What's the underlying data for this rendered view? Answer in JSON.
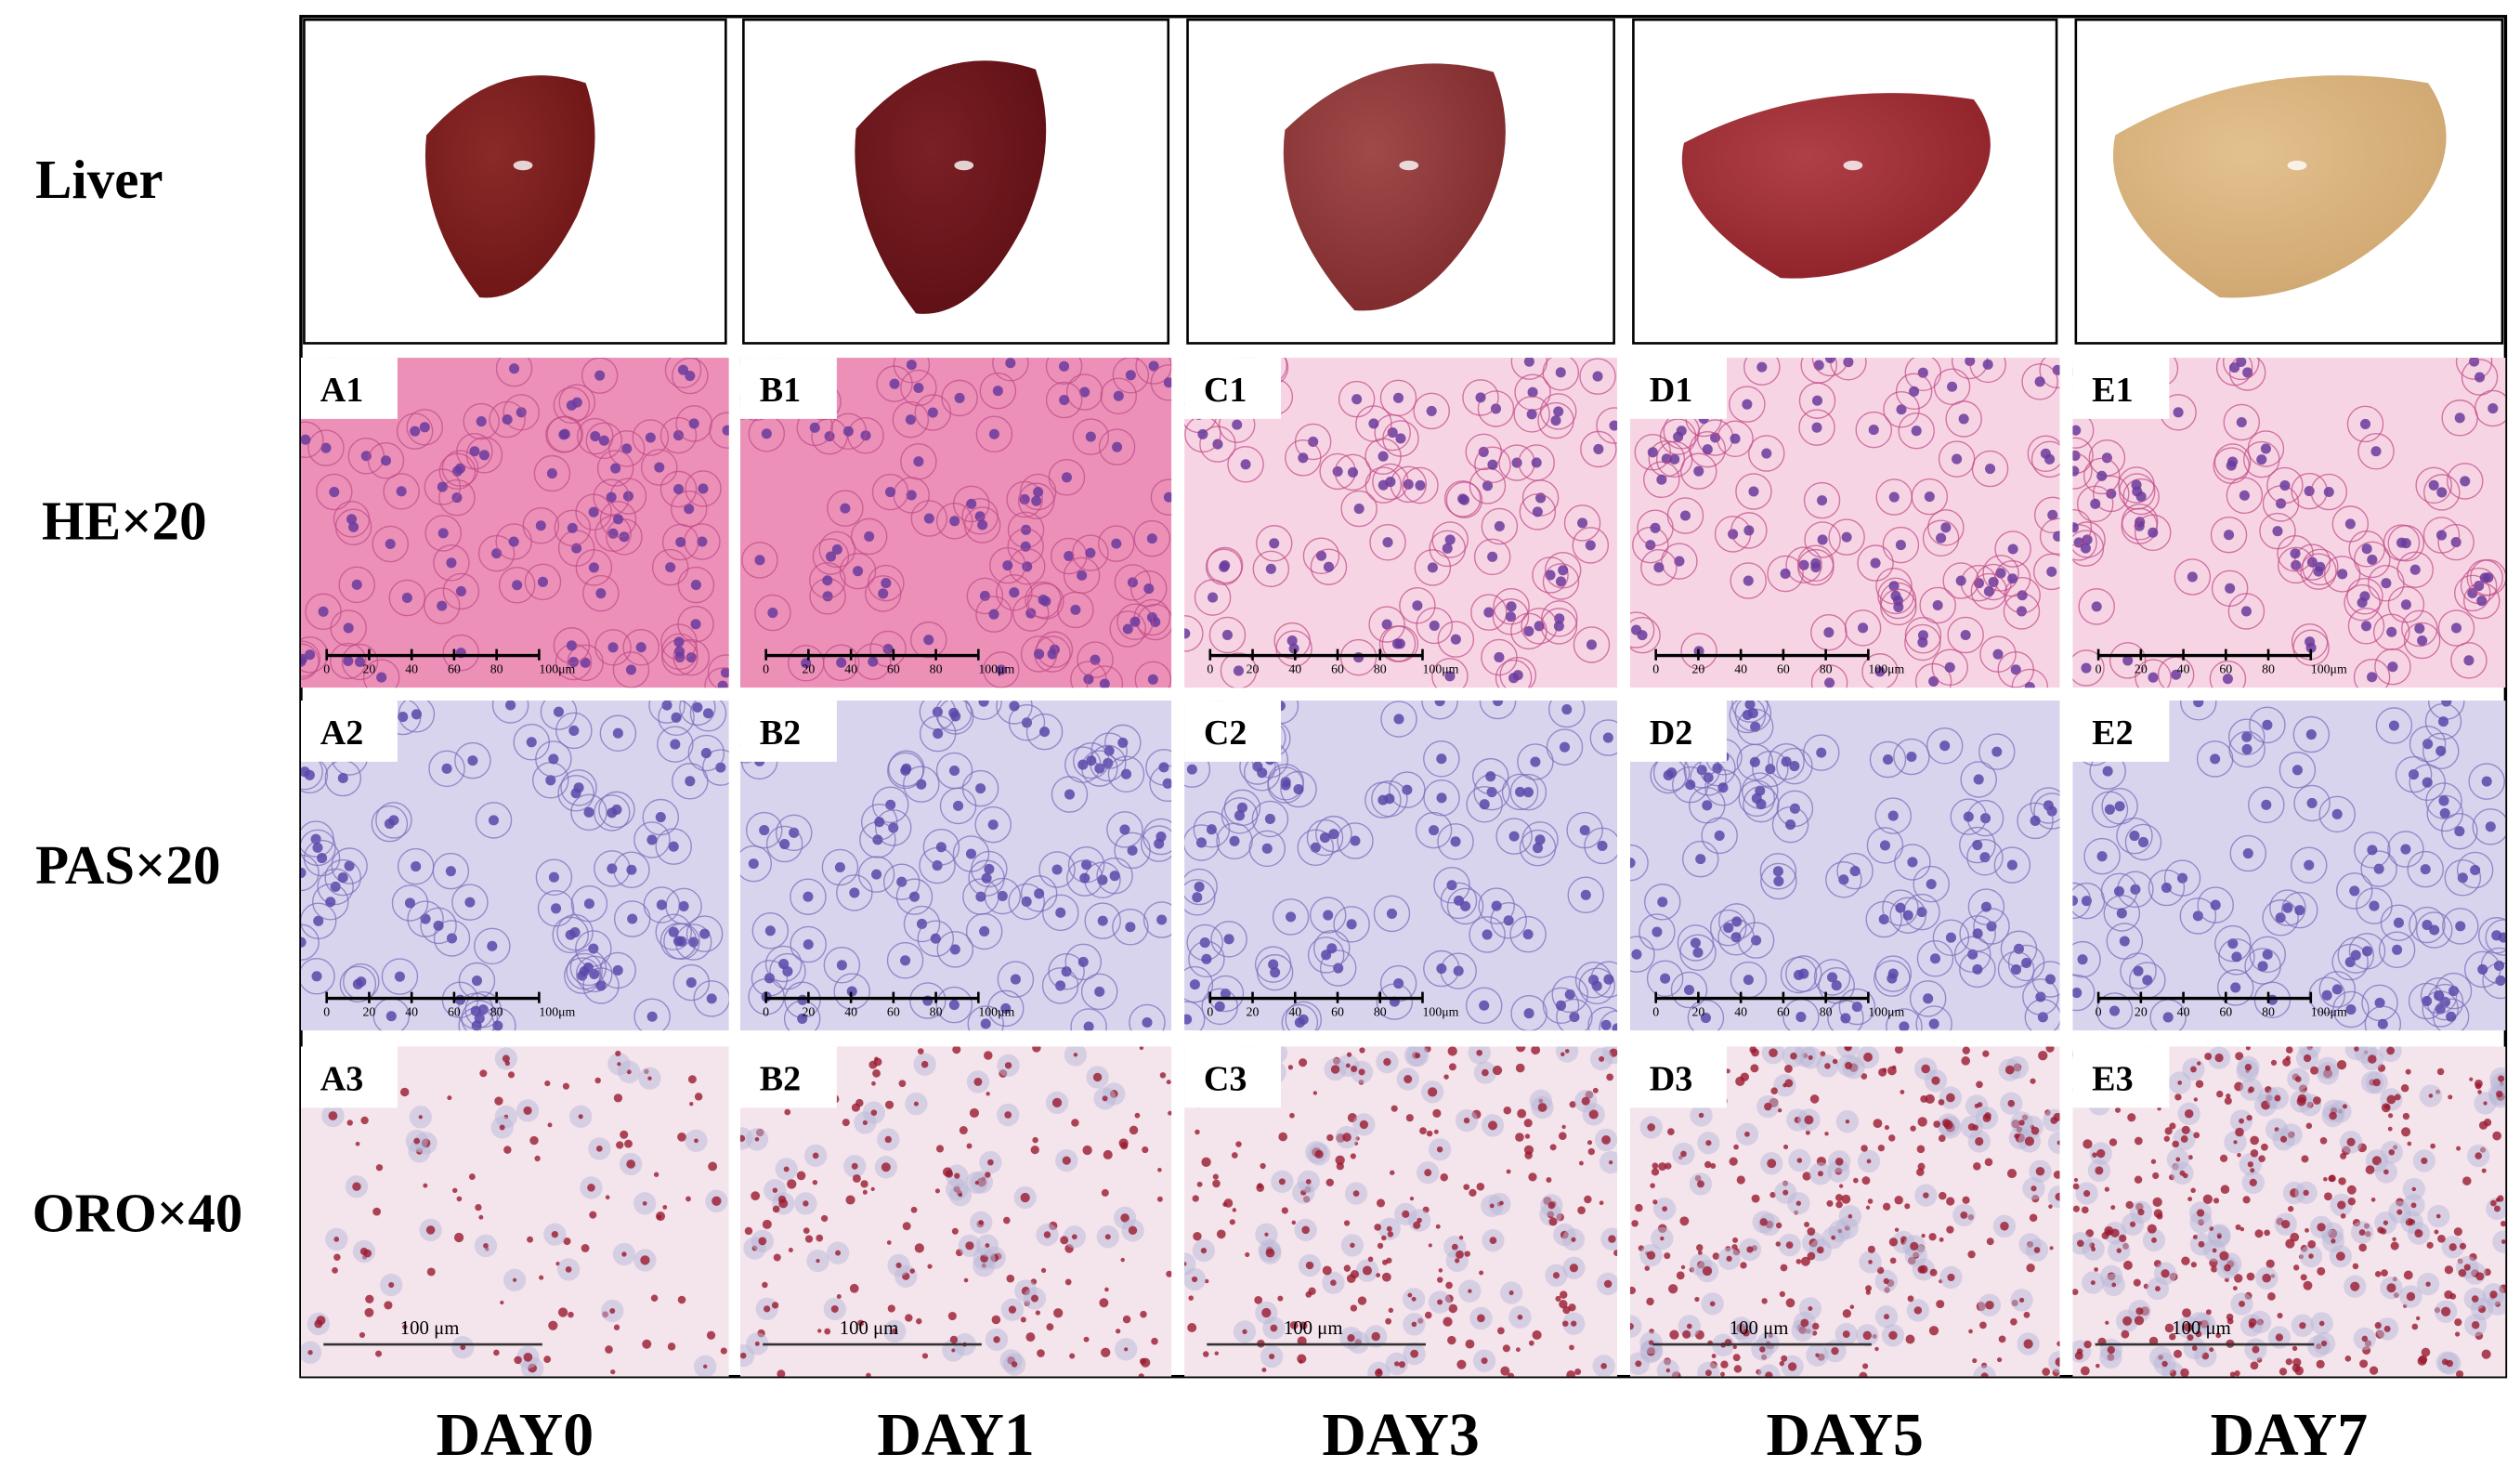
{
  "row_labels": [
    "Liver",
    "HE×20",
    "PAS×20",
    "ORO×40"
  ],
  "column_labels": [
    "DAY0",
    "DAY1",
    "DAY3",
    "DAY5",
    "DAY7"
  ],
  "panels": [
    [
      "A1",
      "B1",
      "C1",
      "D1",
      "E1"
    ],
    [
      "A2",
      "B2",
      "C2",
      "D2",
      "E2"
    ],
    [
      "A3",
      "B2",
      "C3",
      "D3",
      "E3"
    ]
  ],
  "scale_bar": {
    "ticks": [
      "0",
      "20",
      "40",
      "60",
      "80",
      "100μm"
    ],
    "oro": "100 μm"
  }
}
